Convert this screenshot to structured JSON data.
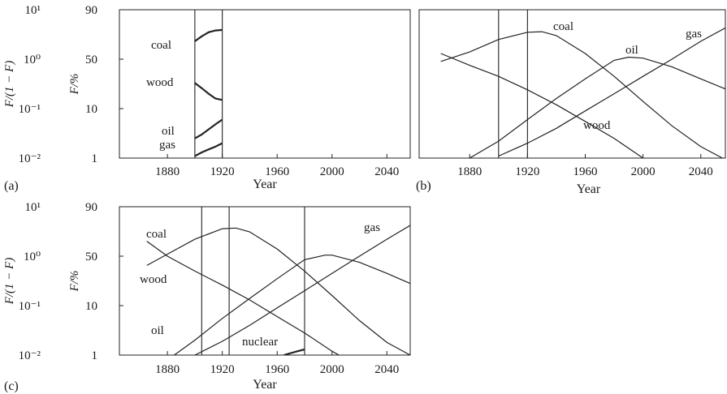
{
  "chart_data": [
    {
      "type": "line",
      "panel_label": "(a)",
      "xlabel": "Year",
      "ylabel_left": "F/(1 − F)",
      "ylabel_right": "F/%",
      "y_scale": "log",
      "xlim": [
        1845,
        2057
      ],
      "ylim_ratio": [
        0.01,
        10
      ],
      "x_ticks": [
        1880,
        1920,
        1960,
        2000,
        2040
      ],
      "y_ticks_left": [
        "10¹",
        "10⁰",
        "10⁻¹",
        "10⁻²"
      ],
      "y_ticks_right": [
        "90",
        "50",
        "10",
        "1"
      ],
      "vertical_lines": [
        1900,
        1920
      ],
      "grid": false,
      "series": [
        {
          "name": "coal",
          "x": [
            1900,
            1905,
            1910,
            1915,
            1920
          ],
          "y": [
            2.3,
            2.9,
            3.5,
            3.8,
            3.9
          ]
        },
        {
          "name": "wood",
          "x": [
            1900,
            1905,
            1910,
            1915,
            1920
          ],
          "y": [
            0.33,
            0.26,
            0.2,
            0.16,
            0.15
          ]
        },
        {
          "name": "oil",
          "x": [
            1900,
            1905,
            1910,
            1915,
            1920
          ],
          "y": [
            0.025,
            0.03,
            0.038,
            0.048,
            0.06
          ]
        },
        {
          "name": "gas",
          "x": [
            1900,
            1905,
            1910,
            1915,
            1920
          ],
          "y": [
            0.011,
            0.013,
            0.015,
            0.017,
            0.02
          ]
        }
      ]
    },
    {
      "type": "line",
      "panel_label": "(b)",
      "xlabel": "Year",
      "y_scale": "log",
      "xlim": [
        1845,
        2057
      ],
      "ylim_ratio": [
        0.01,
        10
      ],
      "x_ticks": [
        1880,
        1920,
        1960,
        2000,
        2040
      ],
      "vertical_lines": [
        1900,
        1920
      ],
      "grid": false,
      "series": [
        {
          "name": "coal",
          "x": [
            1860,
            1880,
            1900,
            1920,
            1930,
            1940,
            1960,
            1980,
            2000,
            2020,
            2040,
            2055
          ],
          "y": [
            0.9,
            1.4,
            2.5,
            3.5,
            3.6,
            3.0,
            1.3,
            0.45,
            0.14,
            0.045,
            0.017,
            0.01
          ]
        },
        {
          "name": "wood",
          "x": [
            1860,
            1880,
            1900,
            1920,
            1940,
            1960,
            1980,
            2000
          ],
          "y": [
            1.3,
            0.75,
            0.45,
            0.24,
            0.12,
            0.055,
            0.025,
            0.01
          ]
        },
        {
          "name": "oil",
          "x": [
            1880,
            1900,
            1920,
            1940,
            1960,
            1980,
            1990,
            2000,
            2020,
            2040,
            2057
          ],
          "y": [
            0.01,
            0.022,
            0.06,
            0.16,
            0.4,
            0.95,
            1.1,
            1.05,
            0.7,
            0.4,
            0.25
          ]
        },
        {
          "name": "gas",
          "x": [
            1900,
            1920,
            1940,
            1960,
            1980,
            2000,
            2020,
            2040,
            2057
          ],
          "y": [
            0.011,
            0.02,
            0.04,
            0.09,
            0.2,
            0.45,
            1.0,
            2.3,
            4.3
          ]
        }
      ]
    },
    {
      "type": "line",
      "panel_label": "(c)",
      "xlabel": "Year",
      "ylabel_left": "F/(1 − F)",
      "ylabel_right": "F/%",
      "y_scale": "log",
      "xlim": [
        1845,
        2057
      ],
      "ylim_ratio": [
        0.01,
        10
      ],
      "x_ticks": [
        1880,
        1920,
        1960,
        2000,
        2040
      ],
      "y_ticks_left": [
        "10¹",
        "10⁰",
        "10⁻¹",
        "10⁻²"
      ],
      "y_ticks_right": [
        "90",
        "50",
        "10",
        "1"
      ],
      "vertical_lines": [
        1905,
        1925,
        1980
      ],
      "grid": false,
      "series": [
        {
          "name": "coal",
          "x": [
            1865,
            1880,
            1900,
            1920,
            1930,
            1940,
            1960,
            1980,
            2000,
            2020,
            2040,
            2057
          ],
          "y": [
            0.65,
            1.1,
            2.2,
            3.6,
            3.7,
            3.1,
            1.4,
            0.5,
            0.16,
            0.05,
            0.018,
            0.01
          ]
        },
        {
          "name": "wood",
          "x": [
            1865,
            1880,
            1900,
            1920,
            1940,
            1960,
            1980,
            2000,
            2005
          ],
          "y": [
            2.0,
            1.0,
            0.5,
            0.26,
            0.13,
            0.06,
            0.028,
            0.012,
            0.01
          ]
        },
        {
          "name": "oil",
          "x": [
            1885,
            1900,
            1920,
            1940,
            1960,
            1980,
            1995,
            2000,
            2020,
            2040,
            2057
          ],
          "y": [
            0.01,
            0.02,
            0.055,
            0.14,
            0.35,
            0.85,
            1.05,
            1.05,
            0.75,
            0.45,
            0.28
          ]
        },
        {
          "name": "gas",
          "x": [
            1900,
            1920,
            1940,
            1960,
            1980,
            2000,
            2020,
            2040,
            2057
          ],
          "y": [
            0.01,
            0.019,
            0.04,
            0.09,
            0.2,
            0.45,
            1.0,
            2.2,
            4.2
          ]
        },
        {
          "name": "nuclear",
          "x": [
            1965,
            1970,
            1975,
            1980
          ],
          "y": [
            0.01,
            0.011,
            0.012,
            0.013
          ]
        }
      ]
    }
  ]
}
